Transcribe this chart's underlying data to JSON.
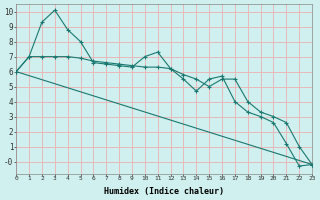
{
  "background_color": "#cff0ee",
  "grid_color": "#e8b8b8",
  "line_color": "#1a7870",
  "xlabel": "Humidex (Indice chaleur)",
  "xlim": [
    0,
    23
  ],
  "ylim": [
    -0.8,
    10.5
  ],
  "xtick_vals": [
    0,
    1,
    2,
    3,
    4,
    5,
    6,
    7,
    8,
    9,
    10,
    11,
    12,
    13,
    14,
    15,
    16,
    17,
    18,
    19,
    20,
    21,
    22,
    23
  ],
  "ytick_vals": [
    0,
    1,
    2,
    3,
    4,
    5,
    6,
    7,
    8,
    9,
    10
  ],
  "ytick_labels": [
    "-0",
    "1",
    "2",
    "3",
    "4",
    "5",
    "6",
    "7",
    "8",
    "9",
    "10"
  ],
  "line1_x": [
    0,
    1,
    2,
    3,
    4,
    5,
    6,
    7,
    8,
    9,
    10,
    11,
    12,
    13,
    14,
    15,
    16,
    17,
    18,
    19,
    20,
    21,
    22,
    23
  ],
  "line1_y": [
    6.0,
    7.0,
    7.0,
    7.0,
    7.0,
    6.9,
    6.7,
    6.6,
    6.5,
    6.4,
    6.3,
    6.3,
    6.2,
    5.8,
    5.5,
    5.0,
    5.5,
    5.5,
    4.0,
    3.3,
    3.0,
    2.6,
    1.0,
    -0.2
  ],
  "line2_x": [
    0,
    1,
    2,
    3,
    4,
    5,
    6,
    7,
    8,
    9,
    10,
    11,
    12,
    13,
    14,
    15,
    16,
    17,
    18,
    19,
    20,
    21,
    22,
    23
  ],
  "line2_y": [
    6.0,
    7.0,
    9.3,
    10.1,
    8.8,
    8.0,
    6.6,
    6.5,
    6.4,
    6.3,
    7.0,
    7.3,
    6.2,
    5.5,
    4.7,
    5.5,
    5.7,
    4.0,
    3.3,
    3.0,
    2.6,
    1.2,
    -0.3,
    -0.2
  ],
  "line3_x": [
    0,
    23
  ],
  "line3_y": [
    6.0,
    -0.2
  ]
}
